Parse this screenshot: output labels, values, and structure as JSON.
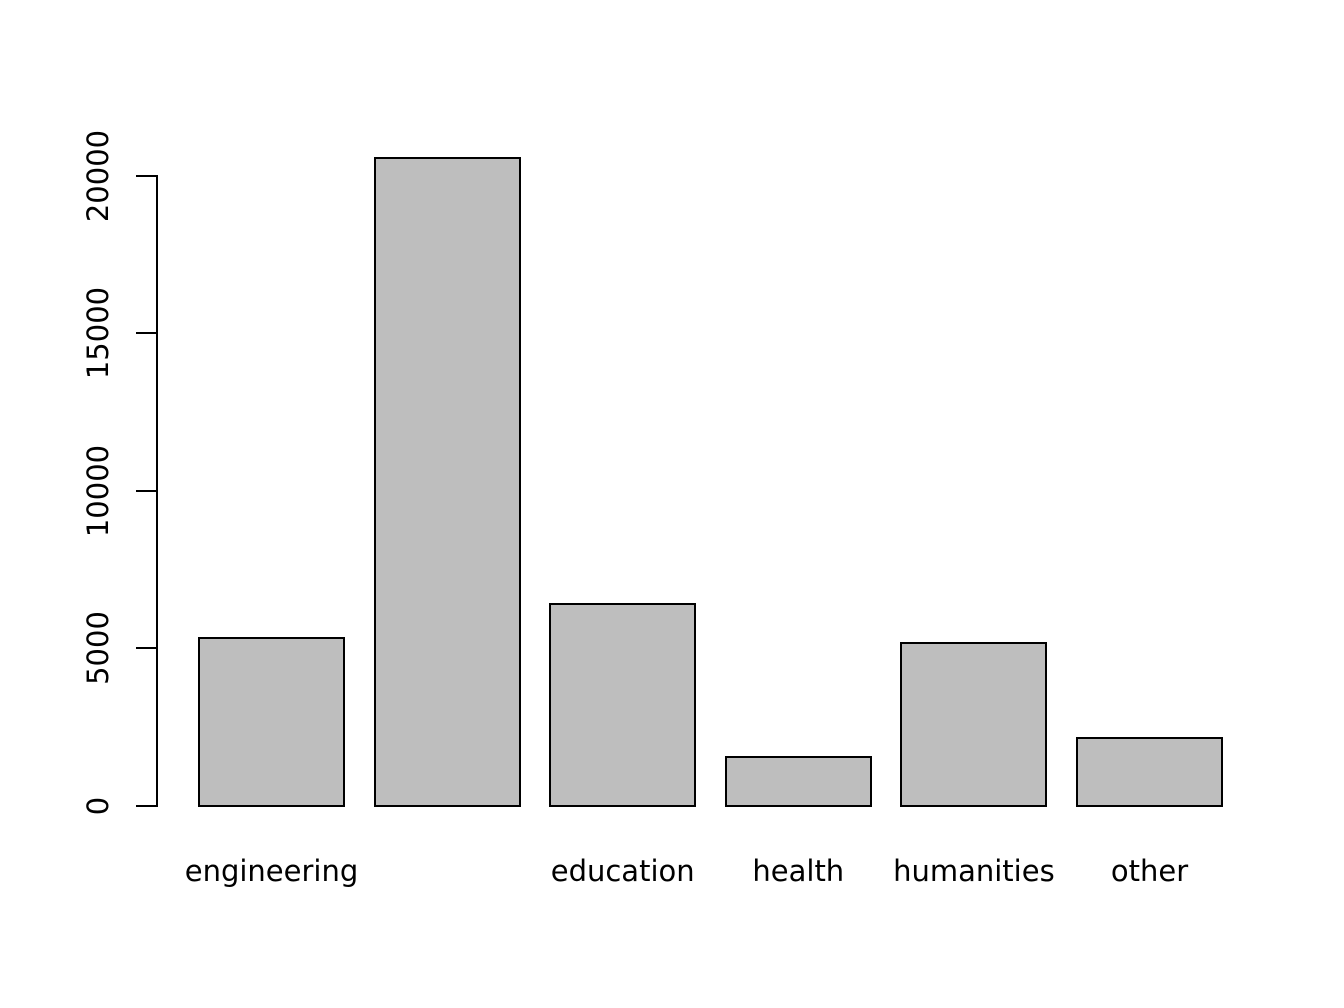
{
  "chart_data": {
    "type": "bar",
    "title": "",
    "xlabel": "",
    "ylabel": "",
    "categories": [
      "engineering",
      "",
      "education",
      "health",
      "humanities",
      "other"
    ],
    "values": [
      5350,
      20600,
      6450,
      1600,
      5200,
      2200
    ],
    "ylim": [
      0,
      20650
    ],
    "yticks": [
      0,
      5000,
      10000,
      15000,
      20000
    ],
    "ytick_labels": [
      "0",
      "5000",
      "10000",
      "15000",
      "20000"
    ],
    "grid": false,
    "legend": false,
    "colors": {
      "bar_fill": "#bebebe",
      "bar_border": "#000000",
      "axis": "#000000",
      "text": "#000000",
      "background": "#ffffff"
    }
  }
}
